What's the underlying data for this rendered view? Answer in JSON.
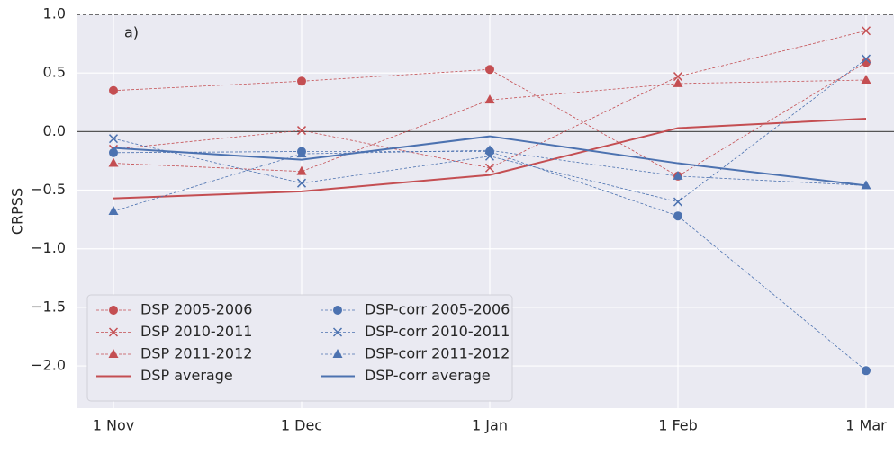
{
  "chart_data": {
    "type": "line",
    "annotation": "a)",
    "y_label": "CRPSS",
    "categories": [
      "1 Nov",
      "1 Dec",
      "1 Jan",
      "1 Feb",
      "1 Mar"
    ],
    "ylim": [
      -2.36,
      1.0
    ],
    "yticks": [
      {
        "value": 1.0,
        "label": "1.0"
      },
      0.5,
      {
        "value": 0,
        "label": "0.0"
      },
      {
        "value": -0.5,
        "label": "−0.5"
      },
      {
        "value": -1.0,
        "label": "−1.0"
      },
      {
        "value": -1.5,
        "label": "−1.5"
      },
      {
        "value": -2.0,
        "label": "−2.0"
      }
    ],
    "grid": true,
    "hlines": [
      {
        "value": 0,
        "color": "#555555",
        "style": "solid"
      },
      {
        "value": 1.0,
        "color": "#222222",
        "style": "dashed"
      }
    ],
    "legend": {
      "loc": "lower left",
      "ncol": 2
    },
    "series": [
      {
        "name": "DSP 2005-2006",
        "color": "#c44e52",
        "marker": "circle",
        "style": "dashed",
        "values": [
          0.35,
          0.43,
          0.53,
          -0.38,
          0.59
        ]
      },
      {
        "name": "DSP 2010-2011",
        "color": "#c44e52",
        "marker": "x",
        "style": "dashed",
        "values": [
          -0.15,
          0.01,
          -0.31,
          0.47,
          0.86
        ]
      },
      {
        "name": "DSP 2011-2012",
        "color": "#c44e52",
        "marker": "triangle",
        "style": "dashed",
        "values": [
          -0.27,
          -0.34,
          0.27,
          0.41,
          0.44
        ]
      },
      {
        "name": "DSP average",
        "color": "#c44e52",
        "marker": "none",
        "style": "solid",
        "values": [
          -0.57,
          -0.51,
          -0.37,
          0.03,
          0.11
        ]
      },
      {
        "name": "DSP-corr 2005-2006",
        "color": "#4c72b0",
        "marker": "circle",
        "style": "dashed",
        "values": [
          -0.18,
          -0.17,
          -0.17,
          -0.72,
          -2.04
        ]
      },
      {
        "name": "DSP-corr 2010-2011",
        "color": "#4c72b0",
        "marker": "x",
        "style": "dashed",
        "values": [
          -0.06,
          -0.44,
          -0.21,
          -0.6,
          0.62
        ]
      },
      {
        "name": "DSP-corr 2011-2012",
        "color": "#4c72b0",
        "marker": "triangle",
        "style": "dashed",
        "values": [
          -0.68,
          -0.19,
          -0.16,
          -0.38,
          -0.46
        ]
      },
      {
        "name": "DSP-corr average",
        "color": "#4c72b0",
        "marker": "none",
        "style": "solid",
        "values": [
          -0.14,
          -0.24,
          -0.04,
          -0.27,
          -0.46
        ]
      }
    ]
  }
}
